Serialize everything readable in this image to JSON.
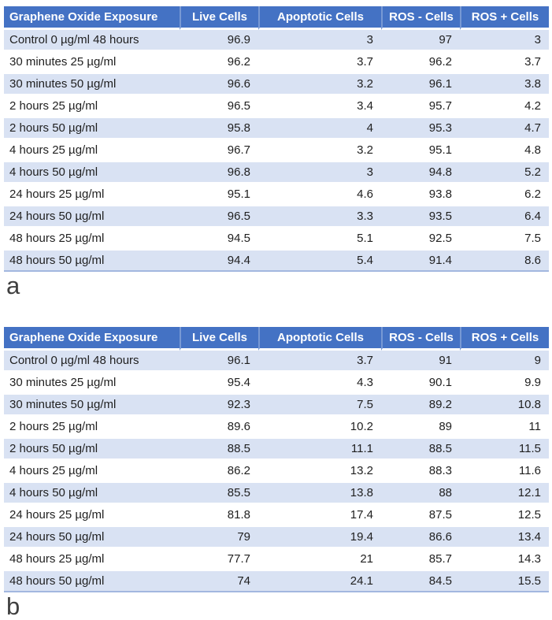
{
  "colors": {
    "header_bg": "#4472C4",
    "header_text": "#FFFFFF",
    "band_row_bg": "#D9E2F3",
    "white_row_bg": "#FFFFFF",
    "table_bottom_border": "#A3B7DF",
    "figure_label_text": "#3F3F3F"
  },
  "columns": [
    "Graphene Oxide Exposure",
    "Live Cells",
    "Apoptotic Cells",
    "ROS - Cells",
    "ROS + Cells"
  ],
  "tables": [
    {
      "label": "a",
      "rows": [
        [
          "Control 0 µg/ml 48 hours",
          "96.9",
          "3",
          "97",
          "3"
        ],
        [
          "30 minutes 25 µg/ml",
          "96.2",
          "3.7",
          "96.2",
          "3.7"
        ],
        [
          "30 minutes 50 µg/ml",
          "96.6",
          "3.2",
          "96.1",
          "3.8"
        ],
        [
          "2 hours 25 µg/ml",
          "96.5",
          "3.4",
          "95.7",
          "4.2"
        ],
        [
          "2 hours 50 µg/ml",
          "95.8",
          "4",
          "95.3",
          "4.7"
        ],
        [
          "4 hours 25 µg/ml",
          "96.7",
          "3.2",
          "95.1",
          "4.8"
        ],
        [
          "4 hours 50 µg/ml",
          "96.8",
          "3",
          "94.8",
          "5.2"
        ],
        [
          "24 hours 25 µg/ml",
          "95.1",
          "4.6",
          "93.8",
          "6.2"
        ],
        [
          "24 hours 50 µg/ml",
          "96.5",
          "3.3",
          "93.5",
          "6.4"
        ],
        [
          "48 hours 25 µg/ml",
          "94.5",
          "5.1",
          "92.5",
          "7.5"
        ],
        [
          "48 hours 50 µg/ml",
          "94.4",
          "5.4",
          "91.4",
          "8.6"
        ]
      ]
    },
    {
      "label": "b",
      "rows": [
        [
          "Control 0 µg/ml 48 hours",
          "96.1",
          "3.7",
          "91",
          "9"
        ],
        [
          "30 minutes 25 µg/ml",
          "95.4",
          "4.3",
          "90.1",
          "9.9"
        ],
        [
          "30 minutes 50 µg/ml",
          "92.3",
          "7.5",
          "89.2",
          "10.8"
        ],
        [
          "2 hours 25 µg/ml",
          "89.6",
          "10.2",
          "89",
          "11"
        ],
        [
          "2 hours 50 µg/ml",
          "88.5",
          "11.1",
          "88.5",
          "11.5"
        ],
        [
          "4 hours 25 µg/ml",
          "86.2",
          "13.2",
          "88.3",
          "11.6"
        ],
        [
          "4 hours 50 µg/ml",
          "85.5",
          "13.8",
          "88",
          "12.1"
        ],
        [
          "24 hours 25 µg/ml",
          "81.8",
          "17.4",
          "87.5",
          "12.5"
        ],
        [
          "24 hours 50 µg/ml",
          "79",
          "19.4",
          "86.6",
          "13.4"
        ],
        [
          "48 hours 25 µg/ml",
          "77.7",
          "21",
          "85.7",
          "14.3"
        ],
        [
          "48 hours 50 µg/ml",
          "74",
          "24.1",
          "84.5",
          "15.5"
        ]
      ]
    }
  ],
  "chart_data": [
    {
      "type": "table",
      "title": "Graphene Oxide Exposure results (panel a)",
      "columns": [
        "Graphene Oxide Exposure",
        "Live Cells",
        "Apoptotic Cells",
        "ROS - Cells",
        "ROS + Cells"
      ],
      "categories": [
        "Control 0 µg/ml 48 hours",
        "30 minutes 25 µg/ml",
        "30 minutes 50 µg/ml",
        "2 hours 25 µg/ml",
        "2 hours 50 µg/ml",
        "4 hours 25 µg/ml",
        "4 hours 50 µg/ml",
        "24 hours 25 µg/ml",
        "24 hours 50 µg/ml",
        "48 hours 25 µg/ml",
        "48 hours 50 µg/ml"
      ],
      "series": [
        {
          "name": "Live Cells",
          "values": [
            96.9,
            96.2,
            96.6,
            96.5,
            95.8,
            96.7,
            96.8,
            95.1,
            96.5,
            94.5,
            94.4
          ]
        },
        {
          "name": "Apoptotic Cells",
          "values": [
            3,
            3.7,
            3.2,
            3.4,
            4,
            3.2,
            3,
            4.6,
            3.3,
            5.1,
            5.4
          ]
        },
        {
          "name": "ROS - Cells",
          "values": [
            97,
            96.2,
            96.1,
            95.7,
            95.3,
            95.1,
            94.8,
            93.8,
            93.5,
            92.5,
            91.4
          ]
        },
        {
          "name": "ROS + Cells",
          "values": [
            3,
            3.7,
            3.8,
            4.2,
            4.7,
            4.8,
            5.2,
            6.2,
            6.4,
            7.5,
            8.6
          ]
        }
      ]
    },
    {
      "type": "table",
      "title": "Graphene Oxide Exposure results (panel b)",
      "columns": [
        "Graphene Oxide Exposure",
        "Live Cells",
        "Apoptotic Cells",
        "ROS - Cells",
        "ROS + Cells"
      ],
      "categories": [
        "Control 0 µg/ml 48 hours",
        "30 minutes 25 µg/ml",
        "30 minutes 50 µg/ml",
        "2 hours 25 µg/ml",
        "2 hours 50 µg/ml",
        "4 hours 25 µg/ml",
        "4 hours 50 µg/ml",
        "24 hours 25 µg/ml",
        "24 hours 50 µg/ml",
        "48 hours 25 µg/ml",
        "48 hours 50 µg/ml"
      ],
      "series": [
        {
          "name": "Live Cells",
          "values": [
            96.1,
            95.4,
            92.3,
            89.6,
            88.5,
            86.2,
            85.5,
            81.8,
            79,
            77.7,
            74
          ]
        },
        {
          "name": "Apoptotic Cells",
          "values": [
            3.7,
            4.3,
            7.5,
            10.2,
            11.1,
            13.2,
            13.8,
            17.4,
            19.4,
            21,
            24.1
          ]
        },
        {
          "name": "ROS - Cells",
          "values": [
            91,
            90.1,
            89.2,
            89,
            88.5,
            88.3,
            88,
            87.5,
            86.6,
            85.7,
            84.5
          ]
        },
        {
          "name": "ROS + Cells",
          "values": [
            9,
            9.9,
            10.8,
            11,
            11.5,
            11.6,
            12.1,
            12.5,
            13.4,
            14.3,
            15.5
          ]
        }
      ]
    }
  ]
}
